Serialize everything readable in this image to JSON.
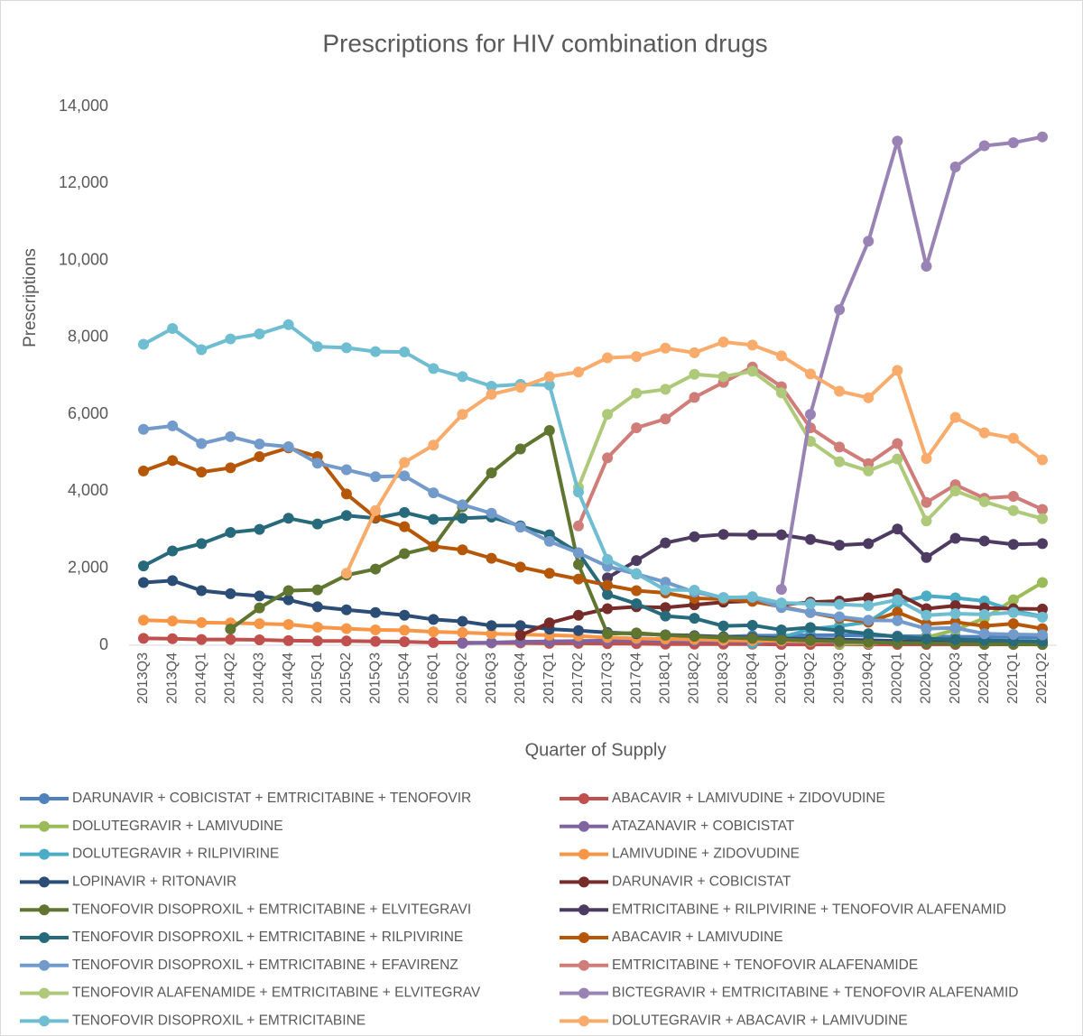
{
  "chart_data": {
    "type": "line",
    "title": "Prescriptions for HIV combination drugs",
    "y_label": "Prescriptions",
    "x_label": "Quarter of Supply",
    "categories": [
      "2013Q3",
      "2013Q4",
      "2014Q1",
      "2014Q2",
      "2014Q3",
      "2014Q4",
      "2015Q1",
      "2015Q2",
      "2015Q3",
      "2015Q4",
      "2016Q1",
      "2016Q2",
      "2016Q3",
      "2016Q4",
      "2017Q1",
      "2017Q2",
      "2017Q3",
      "2017Q4",
      "2018Q1",
      "2018Q2",
      "2018Q3",
      "2018Q4",
      "2019Q1",
      "2019Q2",
      "2019Q3",
      "2019Q4",
      "2020Q1",
      "2020Q2",
      "2020Q3",
      "2020Q4",
      "2021Q1",
      "2021Q2"
    ],
    "ylim": [
      0,
      14000
    ],
    "yticks": [
      0,
      {
        "value": 2000,
        "label": "2,000"
      },
      {
        "value": 4000,
        "label": "4,000"
      },
      {
        "value": 6000,
        "label": "6,000"
      },
      {
        "value": 8000,
        "label": "8,000"
      },
      {
        "value": 10000,
        "label": "10,000"
      },
      {
        "value": 12000,
        "label": "12,000"
      },
      {
        "value": 14000,
        "label": "14,000"
      }
    ],
    "grid": false,
    "legend": "bottom",
    "series": [
      {
        "name": "DARUNAVIR + COBICISTAT + EMTRICITABINE + TENOFOVIR",
        "color": "#4f81bd",
        "values": [
          null,
          null,
          null,
          null,
          null,
          null,
          null,
          null,
          null,
          null,
          null,
          null,
          null,
          null,
          null,
          null,
          null,
          50,
          120,
          180,
          220,
          250,
          250,
          260,
          260,
          250,
          240,
          230,
          220,
          220,
          210,
          200
        ]
      },
      {
        "name": "ABACAVIR + LAMIVUDINE + ZIDOVUDINE",
        "color": "#c0504d",
        "values": [
          180,
          170,
          150,
          150,
          140,
          120,
          110,
          110,
          100,
          90,
          70,
          70,
          60,
          60,
          50,
          50,
          40,
          40,
          30,
          30,
          30,
          30,
          20,
          20,
          20,
          20,
          20,
          20,
          20,
          20,
          20,
          20
        ]
      },
      {
        "name": "DOLUTEGRAVIR + LAMIVUDINE",
        "color": "#9bbb59",
        "values": [
          null,
          null,
          null,
          null,
          null,
          null,
          null,
          null,
          null,
          null,
          null,
          null,
          null,
          null,
          null,
          null,
          null,
          null,
          null,
          null,
          null,
          null,
          null,
          null,
          30,
          50,
          100,
          200,
          400,
          700,
          1180,
          1630
        ]
      },
      {
        "name": "ATAZANAVIR + COBICISTAT",
        "color": "#8064a2",
        "values": [
          null,
          null,
          null,
          null,
          null,
          null,
          null,
          null,
          null,
          null,
          null,
          50,
          70,
          90,
          100,
          110,
          120,
          130,
          120,
          110,
          100,
          100,
          90,
          90,
          80,
          80,
          80,
          70,
          70,
          70,
          70,
          60
        ]
      },
      {
        "name": "DOLUTEGRAVIR + RILPIVIRINE",
        "color": "#4bacc6",
        "values": [
          null,
          null,
          null,
          null,
          null,
          null,
          null,
          null,
          null,
          null,
          null,
          null,
          null,
          null,
          null,
          null,
          null,
          null,
          null,
          null,
          null,
          50,
          200,
          420,
          500,
          600,
          1100,
          1280,
          1230,
          1150,
          900,
          750
        ]
      },
      {
        "name": "LAMIVUDINE + ZIDOVUDINE",
        "color": "#f79646",
        "values": [
          650,
          630,
          590,
          580,
          560,
          540,
          470,
          430,
          400,
          390,
          350,
          330,
          300,
          280,
          260,
          240,
          200,
          180,
          160,
          150,
          130,
          120,
          110,
          100,
          90,
          80,
          70,
          60,
          60,
          50,
          50,
          50
        ]
      },
      {
        "name": "LOPINAVIR + RITONAVIR",
        "color": "#2c4d75",
        "values": [
          1630,
          1680,
          1420,
          1340,
          1280,
          1180,
          1000,
          920,
          850,
          780,
          670,
          620,
          510,
          510,
          420,
          380,
          330,
          300,
          270,
          250,
          220,
          200,
          180,
          160,
          150,
          130,
          110,
          100,
          90,
          80,
          70,
          60
        ]
      },
      {
        "name": "DARUNAVIR + COBICISTAT",
        "color": "#772c2a",
        "values": [
          null,
          null,
          null,
          null,
          null,
          null,
          null,
          null,
          null,
          null,
          null,
          null,
          null,
          260,
          580,
          780,
          950,
          1000,
          980,
          1050,
          1120,
          1150,
          1050,
          1120,
          1150,
          1230,
          1340,
          950,
          1030,
          970,
          950,
          940
        ]
      },
      {
        "name": "TENOFOVIR DISOPROXIL + EMTRICITABINE + ELVITEGRAVI",
        "color": "#5f7530",
        "values": [
          null,
          null,
          null,
          420,
          970,
          1420,
          1440,
          1820,
          1980,
          2380,
          2560,
          3600,
          4480,
          5100,
          5580,
          2100,
          300,
          320,
          260,
          230,
          200,
          180,
          150,
          120,
          100,
          80,
          60,
          50,
          40,
          30,
          30,
          20
        ]
      },
      {
        "name": "EMTRICITABINE + RILPIVIRINE + TENOFOVIR ALAFENAMID",
        "color": "#4d3b62",
        "values": [
          null,
          null,
          null,
          null,
          null,
          null,
          null,
          null,
          null,
          null,
          null,
          null,
          null,
          null,
          null,
          null,
          1750,
          2200,
          2660,
          2820,
          2880,
          2870,
          2870,
          2750,
          2600,
          2640,
          3020,
          2280,
          2780,
          2710,
          2620,
          2640
        ]
      },
      {
        "name": "TENOFOVIR DISOPROXIL + EMTRICITABINE + RILPIVIRINE",
        "color": "#276a7c",
        "values": [
          2060,
          2450,
          2640,
          2930,
          3010,
          3300,
          3150,
          3370,
          3300,
          3450,
          3270,
          3300,
          3330,
          3100,
          2870,
          2400,
          1320,
          1080,
          760,
          700,
          500,
          520,
          400,
          460,
          380,
          300,
          220,
          170,
          150,
          130,
          110,
          100
        ]
      },
      {
        "name": "ABACAVIR + LAMIVUDINE",
        "color": "#b65708",
        "values": [
          4530,
          4800,
          4500,
          4610,
          4900,
          5130,
          4900,
          3930,
          3320,
          3080,
          2570,
          2480,
          2260,
          2030,
          1870,
          1720,
          1560,
          1420,
          1360,
          1220,
          1200,
          1140,
          1000,
          850,
          700,
          600,
          860,
          550,
          600,
          500,
          560,
          430
        ]
      },
      {
        "name": "TENOFOVIR DISOPROXIL + EMTRICITABINE + EFAVIRENZ",
        "color": "#729aca",
        "values": [
          5610,
          5700,
          5240,
          5420,
          5230,
          5160,
          4730,
          4560,
          4380,
          4400,
          3960,
          3650,
          3430,
          3070,
          2700,
          2400,
          2050,
          1850,
          1640,
          1380,
          1240,
          1240,
          980,
          850,
          740,
          650,
          640,
          430,
          450,
          300,
          280,
          270
        ]
      },
      {
        "name": "EMTRICITABINE + TENOFOVIR ALAFENAMIDE",
        "color": "#d07c79",
        "values": [
          null,
          null,
          null,
          null,
          null,
          null,
          null,
          null,
          null,
          null,
          null,
          null,
          null,
          null,
          null,
          3100,
          4870,
          5650,
          5880,
          6440,
          6830,
          7230,
          6720,
          5650,
          5150,
          4720,
          5240,
          3710,
          4170,
          3820,
          3870,
          3530
        ]
      },
      {
        "name": "TENOFOVIR ALAFENAMIDE + EMTRICITABINE + ELVITEGRAV",
        "color": "#afc97a",
        "values": [
          null,
          null,
          null,
          null,
          null,
          null,
          null,
          null,
          null,
          null,
          null,
          null,
          null,
          null,
          null,
          4100,
          6000,
          6550,
          6650,
          7040,
          6980,
          7120,
          6560,
          5300,
          4770,
          4530,
          4840,
          3230,
          4010,
          3730,
          3500,
          3290
        ]
      },
      {
        "name": "BICTEGRAVIR + EMTRICITABINE + TENOFOVIR ALAFENAMID",
        "color": "#9983b5",
        "values": [
          null,
          null,
          null,
          null,
          null,
          null,
          null,
          null,
          null,
          null,
          null,
          null,
          null,
          null,
          null,
          null,
          null,
          null,
          null,
          null,
          null,
          null,
          1450,
          6000,
          8720,
          10500,
          13100,
          9850,
          12430,
          12980,
          13060,
          13210
        ]
      },
      {
        "name": "TENOFOVIR DISOPROXIL + EMTRICITABINE",
        "color": "#6fbdd1",
        "values": [
          7820,
          8230,
          7680,
          7960,
          8090,
          8330,
          7760,
          7730,
          7630,
          7620,
          7190,
          6980,
          6730,
          6780,
          6760,
          3980,
          2230,
          1860,
          1440,
          1430,
          1230,
          1260,
          1100,
          1080,
          1060,
          1030,
          1180,
          780,
          820,
          800,
          850,
          730
        ]
      },
      {
        "name": "DOLUTEGRAVIR + ABACAVIR + LAMIVUDINE",
        "color": "#f9ab6b",
        "values": [
          null,
          null,
          null,
          null,
          null,
          null,
          null,
          1870,
          3500,
          4750,
          5200,
          6000,
          6520,
          6700,
          6980,
          7100,
          7470,
          7500,
          7720,
          7600,
          7880,
          7800,
          7520,
          7050,
          6600,
          6430,
          7140,
          4850,
          5920,
          5520,
          5380,
          4820
        ]
      }
    ]
  }
}
